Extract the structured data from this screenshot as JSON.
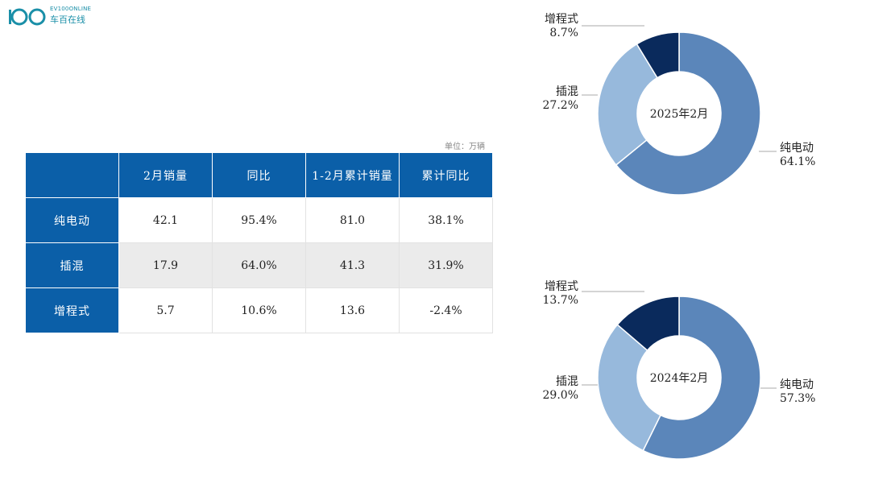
{
  "logo": {
    "text_en": "EV100ONLINE",
    "text_cn": "车百在线"
  },
  "table": {
    "unit_label": "单位：万辆",
    "headers": [
      "",
      "2月销量",
      "同比",
      "1-2月累计销量",
      "累计同比"
    ],
    "rows": [
      {
        "label": "纯电动",
        "cells": [
          "42.1",
          "95.4%",
          "81.0",
          "38.1%"
        ]
      },
      {
        "label": "插混",
        "cells": [
          "17.9",
          "64.0%",
          "41.3",
          "31.9%"
        ]
      },
      {
        "label": "增程式",
        "cells": [
          "5.7",
          "10.6%",
          "13.6",
          "-2.4%"
        ]
      }
    ]
  },
  "colors": {
    "bev": "#5b86ba",
    "phev": "#97b9dc",
    "erev": "#0a2a5c",
    "header": "#0b5fa8"
  },
  "chart_data": [
    {
      "type": "pie",
      "center_label": "2025年2月",
      "slices": [
        {
          "name": "纯电动",
          "value": 64.1,
          "label": "64.1%"
        },
        {
          "name": "插混",
          "value": 27.2,
          "label": "27.2%"
        },
        {
          "name": "增程式",
          "value": 8.7,
          "label": "8.7%"
        }
      ]
    },
    {
      "type": "pie",
      "center_label": "2024年2月",
      "slices": [
        {
          "name": "纯电动",
          "value": 57.3,
          "label": "57.3%"
        },
        {
          "name": "插混",
          "value": 29.0,
          "label": "29.0%"
        },
        {
          "name": "增程式",
          "value": 13.7,
          "label": "13.7%"
        }
      ]
    }
  ]
}
